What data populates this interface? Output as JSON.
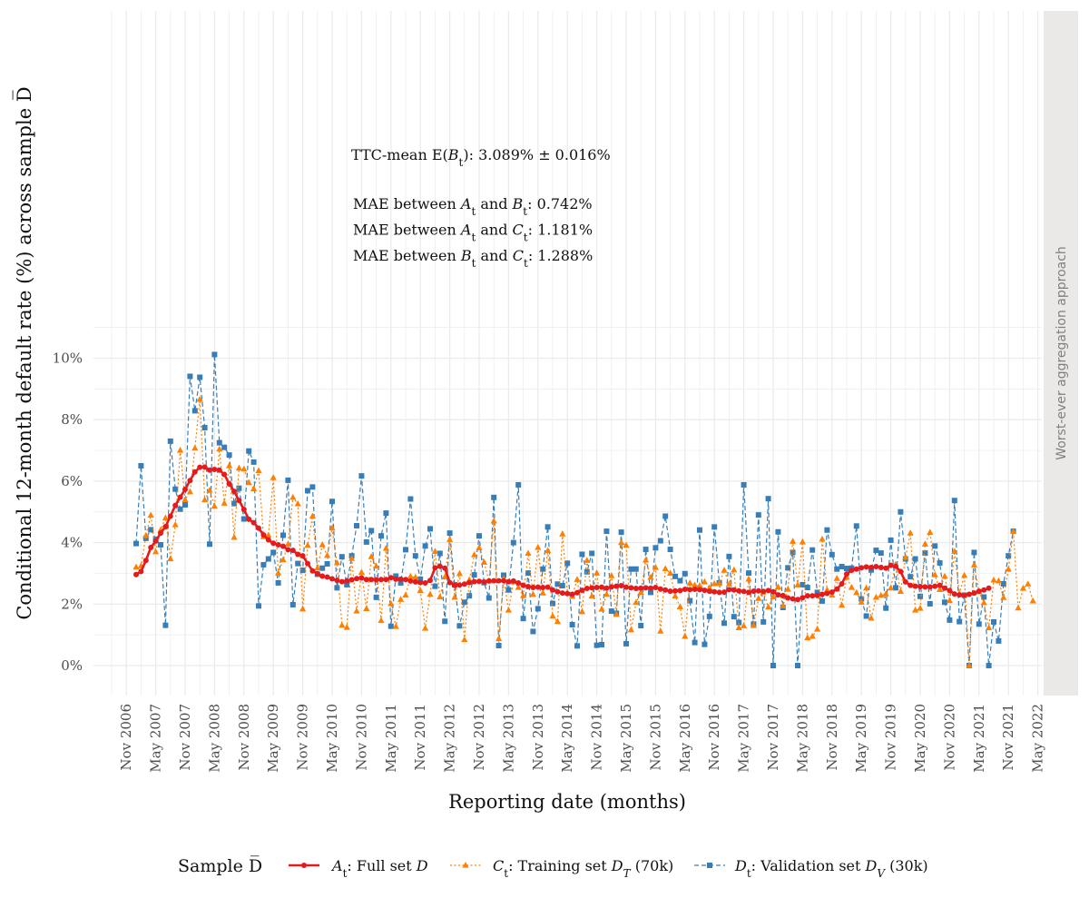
{
  "chart_data": {
    "type": "line",
    "ylabel": "Conditional 12-month default rate (%) across sample D̅",
    "xlabel": "Reporting date (months)",
    "facet_strip": "Worst-ever aggregation approach",
    "ylim": [
      -0.5,
      10.7
    ],
    "y_ticks": [
      0,
      2,
      4,
      6,
      8,
      10
    ],
    "y_tick_labels": [
      "0%",
      "2%",
      "4%",
      "6%",
      "8%",
      "10%"
    ],
    "x_tick_labels": [
      "Nov 2006",
      "May 2007",
      "Nov 2007",
      "May 2008",
      "Nov 2008",
      "May 2009",
      "Nov 2009",
      "May 2010",
      "Nov 2010",
      "May 2011",
      "Nov 2011",
      "May 2012",
      "Nov 2012",
      "May 2013",
      "Nov 2013",
      "May 2014",
      "Nov 2014",
      "May 2015",
      "Nov 2015",
      "May 2016",
      "Nov 2016",
      "May 2017",
      "Nov 2017",
      "May 2018",
      "Nov 2018",
      "May 2019",
      "Nov 2019",
      "May 2020",
      "Nov 2020",
      "May 2021",
      "Nov 2021",
      "May 2022"
    ],
    "x_start": "2007-01",
    "annotations": {
      "ttc_prefix": "TTC-mean E(",
      "ttc_var": "B",
      "ttc_sub": "t",
      "ttc_suffix": "): 3.089% ± 0.016%",
      "mae_lines": [
        {
          "prefix": "MAE between ",
          "v1": "A",
          "s1": "t",
          "mid": " and ",
          "v2": "B",
          "s2": "t",
          "suffix": ": 0.742%"
        },
        {
          "prefix": "MAE between ",
          "v1": "A",
          "s1": "t",
          "mid": " and ",
          "v2": "C",
          "s2": "t",
          "suffix": ": 1.181%"
        },
        {
          "prefix": "MAE between ",
          "v1": "B",
          "s1": "t",
          "mid": " and ",
          "v2": "C",
          "s2": "t",
          "suffix": ": 1.288%"
        }
      ]
    },
    "legend": {
      "title": "Sample D̅",
      "items": [
        {
          "var": "A",
          "sub": "t",
          "label": ": Full set ",
          "set": "D",
          "set_sub": "",
          "tail": ""
        },
        {
          "var": "C",
          "sub": "t",
          "label": ": Training set ",
          "set": "D",
          "set_sub": "T",
          "tail": " (70k)"
        },
        {
          "var": "D",
          "sub": "t",
          "label": ": Validation set ",
          "set": "D",
          "set_sub": "V",
          "tail": " (30k)"
        }
      ]
    },
    "series": [
      {
        "key": "A",
        "color": "#e41a1c",
        "marker": "circle",
        "dash": "solid",
        "values": [
          2.96,
          3.06,
          3.42,
          3.84,
          4.05,
          4.31,
          4.52,
          4.86,
          5.21,
          5.48,
          5.73,
          6.02,
          6.3,
          6.45,
          6.46,
          6.36,
          6.38,
          6.36,
          6.22,
          5.91,
          5.67,
          5.37,
          5.08,
          4.76,
          4.65,
          4.47,
          4.25,
          4.09,
          3.98,
          3.93,
          3.88,
          3.77,
          3.75,
          3.62,
          3.57,
          3.32,
          3.08,
          2.99,
          2.91,
          2.88,
          2.82,
          2.77,
          2.73,
          2.76,
          2.79,
          2.83,
          2.85,
          2.8,
          2.8,
          2.79,
          2.8,
          2.8,
          2.86,
          2.81,
          2.81,
          2.8,
          2.75,
          2.72,
          2.7,
          2.69,
          2.77,
          3.18,
          3.23,
          3.17,
          2.7,
          2.61,
          2.62,
          2.65,
          2.7,
          2.73,
          2.74,
          2.72,
          2.75,
          2.76,
          2.76,
          2.76,
          2.73,
          2.75,
          2.69,
          2.61,
          2.57,
          2.54,
          2.55,
          2.54,
          2.55,
          2.46,
          2.4,
          2.36,
          2.34,
          2.32,
          2.37,
          2.45,
          2.51,
          2.53,
          2.54,
          2.55,
          2.52,
          2.56,
          2.58,
          2.6,
          2.55,
          2.53,
          2.51,
          2.52,
          2.53,
          2.52,
          2.54,
          2.49,
          2.46,
          2.42,
          2.43,
          2.44,
          2.48,
          2.47,
          2.48,
          2.47,
          2.45,
          2.42,
          2.4,
          2.38,
          2.39,
          2.47,
          2.46,
          2.43,
          2.41,
          2.38,
          2.42,
          2.43,
          2.41,
          2.44,
          2.4,
          2.3,
          2.28,
          2.2,
          2.17,
          2.15,
          2.21,
          2.27,
          2.27,
          2.28,
          2.32,
          2.35,
          2.39,
          2.49,
          2.66,
          2.98,
          3.1,
          3.14,
          3.18,
          3.21,
          3.19,
          3.22,
          3.19,
          3.17,
          3.26,
          3.23,
          3.06,
          2.72,
          2.61,
          2.58,
          2.57,
          2.56,
          2.56,
          2.58,
          2.61,
          2.52,
          2.44,
          2.33,
          2.3,
          2.29,
          2.32,
          2.36,
          2.42,
          2.46,
          2.52
        ]
      },
      {
        "key": "C",
        "color": "#ff7f00",
        "marker": "triangle",
        "dash": "dotted",
        "values": [
          3.2,
          3.24,
          4.23,
          4.89,
          3.7,
          4.41,
          4.8,
          3.47,
          4.58,
          7.0,
          5.39,
          5.65,
          7.07,
          8.66,
          5.39,
          5.7,
          5.18,
          7.04,
          5.28,
          6.5,
          4.17,
          6.42,
          6.39,
          5.95,
          5.75,
          6.34,
          4.19,
          4.24,
          6.11,
          3.01,
          3.44,
          3.95,
          5.47,
          5.26,
          1.84,
          3.91,
          4.86,
          3.17,
          3.93,
          3.58,
          4.47,
          3.34,
          1.31,
          1.24,
          3.48,
          1.77,
          3.03,
          1.85,
          3.54,
          3.23,
          1.46,
          3.81,
          2.01,
          1.27,
          2.15,
          2.29,
          2.9,
          2.87,
          2.44,
          1.21,
          2.32,
          3.71,
          2.23,
          2.88,
          4.1,
          2.22,
          2.99,
          0.84,
          2.79,
          3.6,
          3.83,
          3.36,
          2.75,
          4.7,
          0.87,
          2.82,
          1.8,
          2.73,
          2.54,
          2.27,
          3.65,
          2.31,
          3.84,
          2.36,
          3.74,
          1.61,
          1.43,
          4.28,
          2.37,
          2.25,
          2.8,
          1.75,
          3.42,
          2.26,
          3.01,
          1.83,
          2.32,
          2.92,
          1.66,
          4.0,
          3.91,
          1.16,
          2.05,
          2.38,
          3.43,
          2.87,
          3.19,
          1.12,
          3.15,
          3.0,
          2.26,
          1.91,
          0.95,
          2.68,
          2.62,
          2.6,
          2.72,
          2.53,
          2.66,
          2.67,
          3.1,
          2.65,
          3.11,
          1.23,
          1.29,
          2.81,
          1.3,
          2.18,
          2.39,
          1.9,
          2.23,
          2.56,
          1.94,
          2.48,
          4.04,
          2.62,
          4.02,
          0.9,
          0.95,
          1.18,
          4.11,
          2.46,
          2.29,
          2.83,
          1.96,
          2.87,
          2.54,
          2.37,
          2.06,
          2.52,
          1.54,
          2.22,
          2.28,
          2.33,
          2.52,
          3.29,
          2.41,
          3.52,
          4.31,
          1.8,
          1.86,
          3.95,
          4.33,
          2.95,
          2.47,
          2.9,
          2.11,
          3.71,
          2.34,
          2.93,
          0.0,
          3.27,
          2.4,
          2.04,
          1.23,
          2.78,
          2.75,
          2.21,
          3.13,
          4.36,
          1.87,
          2.51,
          2.65,
          2.1
        ]
      },
      {
        "key": "D",
        "color": "#377eb8",
        "marker": "square",
        "dash": "dashed",
        "values": [
          3.97,
          6.5,
          4.14,
          4.42,
          4.11,
          3.93,
          1.31,
          7.3,
          5.74,
          5.09,
          5.23,
          9.41,
          8.29,
          9.38,
          7.74,
          3.95,
          10.12,
          7.25,
          7.1,
          6.85,
          5.27,
          5.77,
          4.77,
          6.98,
          6.62,
          1.94,
          3.28,
          3.47,
          3.68,
          2.69,
          4.24,
          6.03,
          1.98,
          3.32,
          3.1,
          5.69,
          5.81,
          2.97,
          3.17,
          3.31,
          5.34,
          2.53,
          3.54,
          2.63,
          3.57,
          4.55,
          6.17,
          4.02,
          4.39,
          2.22,
          4.22,
          4.96,
          1.28,
          2.91,
          2.69,
          3.77,
          5.42,
          3.57,
          2.81,
          3.89,
          4.45,
          2.58,
          3.65,
          1.44,
          4.31,
          2.63,
          1.29,
          2.06,
          2.27,
          2.95,
          4.22,
          2.7,
          2.2,
          5.47,
          0.65,
          2.94,
          2.46,
          4.0,
          5.88,
          1.53,
          3.01,
          1.11,
          1.85,
          3.14,
          4.51,
          2.02,
          2.65,
          2.6,
          3.33,
          1.33,
          0.64,
          3.62,
          3.05,
          3.65,
          0.66,
          0.68,
          4.37,
          1.77,
          1.7,
          4.34,
          0.71,
          3.14,
          3.14,
          1.3,
          3.78,
          2.38,
          3.83,
          4.06,
          4.86,
          3.78,
          2.9,
          2.76,
          2.99,
          2.11,
          0.75,
          4.41,
          0.69,
          1.6,
          4.51,
          2.69,
          1.38,
          3.55,
          1.59,
          1.4,
          5.88,
          3.01,
          1.35,
          4.9,
          1.42,
          5.43,
          0.0,
          4.35,
          1.89,
          3.18,
          3.68,
          0.0,
          2.63,
          2.54,
          3.76,
          2.38,
          2.1,
          4.41,
          3.61,
          3.14,
          3.22,
          3.16,
          3.17,
          4.54,
          2.17,
          1.61,
          3.11,
          3.75,
          3.66,
          1.87,
          4.08,
          2.53,
          5.0,
          3.47,
          2.89,
          3.47,
          2.25,
          3.66,
          2.01,
          3.89,
          3.34,
          2.06,
          1.48,
          5.37,
          1.43,
          2.29,
          0.0,
          3.68,
          1.35,
          2.23,
          0.0,
          1.42,
          0.8,
          2.66,
          3.57,
          4.37
        ]
      }
    ]
  }
}
